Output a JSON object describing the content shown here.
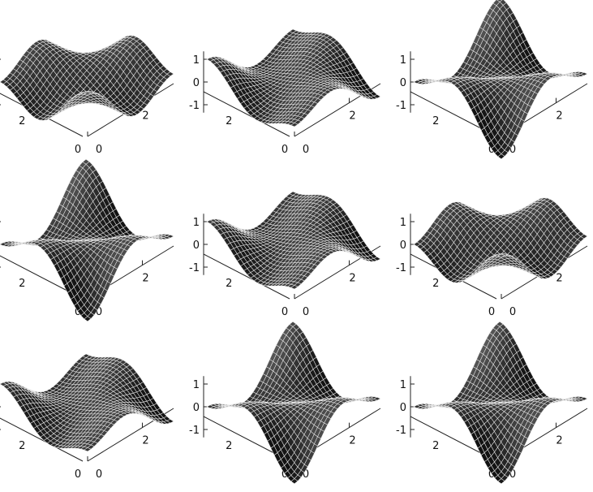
{
  "chart_data": {
    "type": "surface",
    "description_of_function": "z = a*cos(x)*cos(2y) + b*cos(2x)*cos(y), x,y in [0, pi]",
    "grid": false,
    "zlim": [
      -1.3,
      1.3
    ],
    "xlim": [
      0,
      3.1416
    ],
    "ylim": [
      0,
      3.1416
    ],
    "z_ticks": [
      "1",
      "0",
      "-1"
    ],
    "x_ticks": [
      "0",
      "2"
    ],
    "y_ticks": [
      "0",
      "2"
    ],
    "panels": [
      {
        "a": 0.71,
        "b": 0.71
      },
      {
        "a": 0.5,
        "b": -0.5
      },
      {
        "a": -0.71,
        "b": -0.71
      },
      {
        "a": -0.71,
        "b": -0.71
      },
      {
        "a": 0.5,
        "b": -0.5
      },
      {
        "a": 0.71,
        "b": 0.71
      },
      {
        "a": 0.5,
        "b": -0.5
      },
      {
        "a": -0.71,
        "b": -0.71
      },
      {
        "a": -0.71,
        "b": -0.71
      }
    ]
  }
}
